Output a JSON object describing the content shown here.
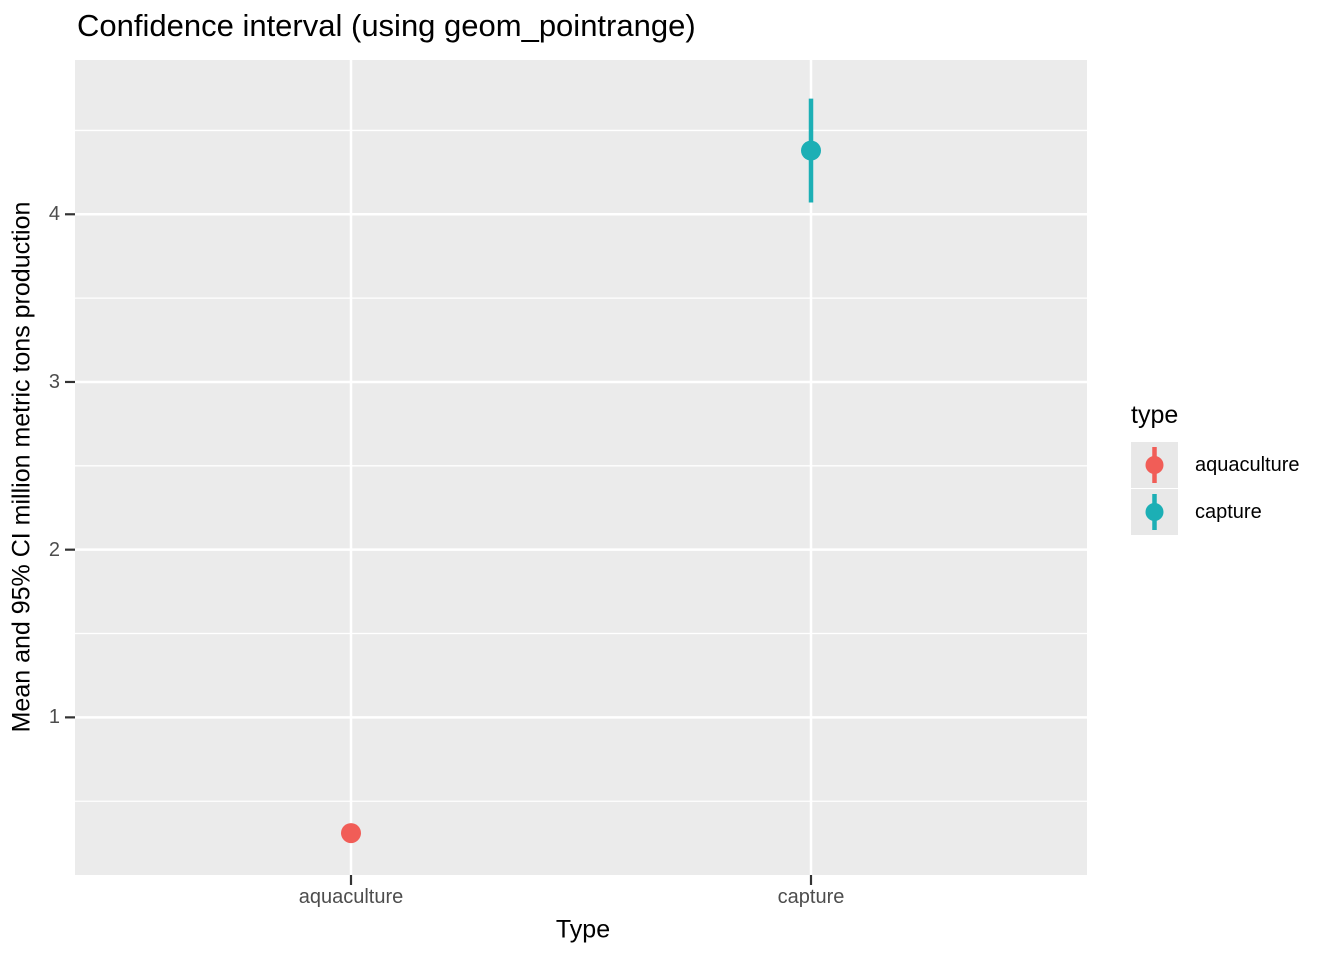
{
  "chart_data": {
    "type": "pointrange",
    "title": "Confidence interval (using geom_pointrange)",
    "xlabel": "Type",
    "ylabel": "Mean and 95% CI million metric tons production",
    "categories": [
      "aquaculture",
      "capture"
    ],
    "series": [
      {
        "name": "aquaculture",
        "mean": 0.31,
        "ci_low": 0.29,
        "ci_high": 0.33,
        "color": "#F15D57"
      },
      {
        "name": "capture",
        "mean": 4.38,
        "ci_low": 4.07,
        "ci_high": 4.69,
        "color": "#1CAFB5"
      }
    ],
    "y_major_ticks": [
      1,
      2,
      3,
      4
    ],
    "y_minor_ticks": [
      0.5,
      1.5,
      2.5,
      3.5,
      4.5
    ],
    "ylim": [
      0.06,
      4.92
    ],
    "grid": true,
    "legend_position": "right",
    "theme": {
      "panel_bg": "#EBEBEB",
      "grid_color": "#FFFFFF",
      "tick_mark_color": "#333333",
      "tick_label_color": "#4D4D4D",
      "title_color": "#000000",
      "legend_key_bg": "#E8E8E8",
      "background": "#FFFFFF"
    }
  },
  "legend": {
    "title": "type",
    "entries": [
      {
        "label": "aquaculture",
        "color": "#F15D57"
      },
      {
        "label": "capture",
        "color": "#1CAFB5"
      }
    ]
  }
}
